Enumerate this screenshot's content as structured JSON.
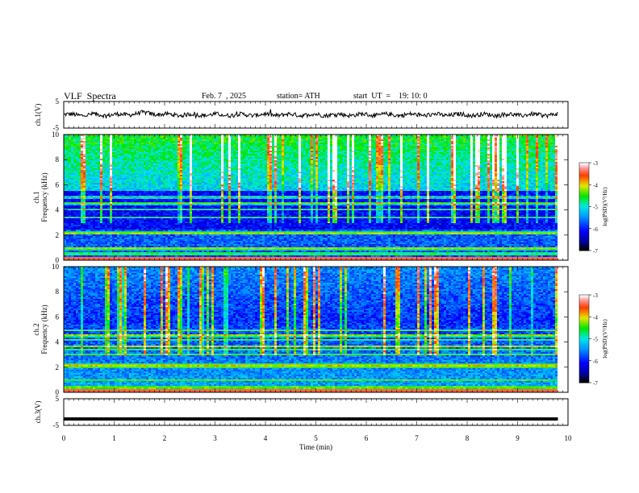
{
  "header": {
    "title": "VLF  Spectra",
    "date": "Feb. 7  , 2025",
    "station": "station= ATH",
    "start": "start  UT  =    19: 10: 0"
  },
  "chart_data": [
    {
      "type": "line",
      "panel": "ch1-waveform",
      "ylabel": "ch.1(V)",
      "ylim": [
        -5,
        5
      ],
      "yticks": [
        "5",
        "-5"
      ],
      "xlim": [
        0,
        10
      ],
      "color": "#000000",
      "series": [
        {
          "x_range": [
            0,
            9.8
          ],
          "baseline": 0,
          "noise_amplitude": 0.8,
          "bump": {
            "x_from": 1.2,
            "x_to": 2.0,
            "level": 0.6
          }
        }
      ]
    },
    {
      "type": "heatmap",
      "panel": "ch1-spectrogram",
      "ylabel_top": "ch.1",
      "ylabel": "Frequency (kHz)",
      "ylim": [
        0,
        10
      ],
      "yticks": [
        "0",
        "2",
        "4",
        "6",
        "8",
        "10"
      ],
      "xlim": [
        0,
        10
      ],
      "x_data_range": [
        0,
        9.8
      ],
      "colorbar": {
        "label": "log(PSD)(V²/Hz)",
        "range": [
          -7,
          -3
        ],
        "ticks": [
          "-3",
          "-4",
          "-5",
          "-6",
          "-7"
        ]
      },
      "bands_khz": [
        0.5,
        0.9,
        1.0,
        2.1,
        2.2,
        3.4,
        4.0,
        4.5,
        5.0
      ],
      "tone_khz": [
        1.0,
        2.1,
        4.5
      ]
    },
    {
      "type": "heatmap",
      "panel": "ch2-spectrogram",
      "ylabel_top": "ch.2",
      "ylabel": "Frequency (kHz)",
      "ylim": [
        0,
        10
      ],
      "yticks": [
        "0",
        "2",
        "4",
        "6",
        "8",
        "10"
      ],
      "xlim": [
        0,
        10
      ],
      "x_data_range": [
        0,
        9.8
      ],
      "colorbar": {
        "label": "log(PSD)(V²/Hz)",
        "range": [
          -7,
          -3
        ],
        "ticks": [
          "-3",
          "-4",
          "-5",
          "-6",
          "-7"
        ]
      },
      "bands_khz": [
        0.4,
        1.0,
        2.0,
        2.2,
        3.0,
        3.4,
        3.7,
        4.2,
        4.5,
        4.9
      ],
      "tone_khz": [
        2.1,
        4.5,
        3.7
      ]
    },
    {
      "type": "line",
      "panel": "ch3-waveform",
      "ylabel": "ch.3(V)",
      "ylim": [
        -5,
        5
      ],
      "yticks": [
        "5",
        "-5"
      ],
      "xlim": [
        0,
        10
      ],
      "xlabel": "Time  (min)",
      "xticks": [
        "0",
        "1",
        "2",
        "3",
        "4",
        "5",
        "6",
        "7",
        "8",
        "9",
        "10"
      ],
      "color": "#000000",
      "series": [
        {
          "x_range": [
            0,
            9.8
          ],
          "value": -2.6
        }
      ]
    }
  ]
}
